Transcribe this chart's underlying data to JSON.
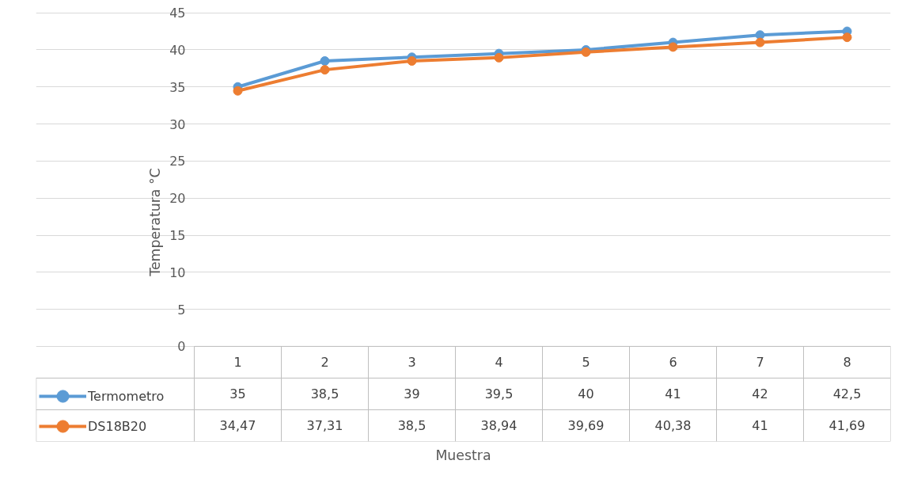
{
  "chart_data": {
    "type": "line",
    "ylabel": "Temperatura °C",
    "annotations": [
      "Muestra"
    ],
    "categories": [
      "1",
      "2",
      "3",
      "4",
      "5",
      "6",
      "7",
      "8"
    ],
    "series": [
      {
        "name": "Termometro",
        "color": "#5b9bd5",
        "values": [
          35,
          38.5,
          39,
          39.5,
          40,
          41,
          42,
          42.5
        ],
        "value_labels": [
          "35",
          "38,5",
          "39",
          "39,5",
          "40",
          "41",
          "42",
          "42,5"
        ]
      },
      {
        "name": "DS18B20",
        "color": "#ed7d31",
        "values": [
          34.47,
          37.31,
          38.5,
          38.94,
          39.69,
          40.38,
          41,
          41.69
        ],
        "value_labels": [
          "34,47",
          "37,31",
          "38,5",
          "38,94",
          "39,69",
          "40,38",
          "41",
          "41,69"
        ]
      }
    ],
    "ylim": [
      0,
      45
    ],
    "yticks": [
      0,
      5,
      10,
      15,
      20,
      25,
      30,
      35,
      40,
      45
    ],
    "grid": "y",
    "legend": "bottom left",
    "marker": "circle",
    "line_style": "solid"
  }
}
